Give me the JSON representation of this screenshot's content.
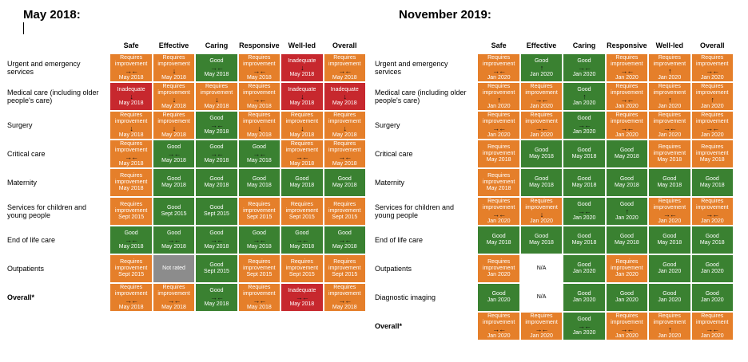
{
  "headings": {
    "left": "May 2018:",
    "right": "November 2019:"
  },
  "columns": [
    "Safe",
    "Effective",
    "Caring",
    "Responsive",
    "Well-led",
    "Overall"
  ],
  "colors": {
    "requires_improvement": "#e57f2a",
    "good": "#3a8131",
    "inadequate": "#c7282e",
    "not_rated": "#8c8c8c",
    "na": "#ffffff"
  },
  "may2018": {
    "rows": [
      {
        "label": "Urgent and emergency services",
        "cells": [
          {
            "rating": "Requires improvement",
            "arrow": "→←",
            "date": "May 2018"
          },
          {
            "rating": "Requires improvement",
            "arrow": "↓",
            "date": "May 2018"
          },
          {
            "rating": "Good",
            "arrow": "→←",
            "date": "May 2018"
          },
          {
            "rating": "Requires improvement",
            "arrow": "→←",
            "date": "May 2018"
          },
          {
            "rating": "Inadequate",
            "arrow": "↓",
            "date": "May 2018"
          },
          {
            "rating": "Requires improvement",
            "arrow": "→←",
            "date": "May 2018"
          }
        ]
      },
      {
        "label": "Medical care (including older people's care)",
        "cells": [
          {
            "rating": "Inadequate",
            "arrow": "↓",
            "date": "May 2018"
          },
          {
            "rating": "Requires improvement",
            "arrow": "↓",
            "date": "May 2018"
          },
          {
            "rating": "Requires improvement",
            "arrow": "↓",
            "date": "May 2018"
          },
          {
            "rating": "Requires improvement",
            "arrow": "→←",
            "date": "May 2018"
          },
          {
            "rating": "Inadequate",
            "arrow": "↓",
            "date": "May 2018"
          },
          {
            "rating": "Inadequate",
            "arrow": "↓",
            "date": "May 2018"
          }
        ]
      },
      {
        "label": "Surgery",
        "cells": [
          {
            "rating": "Requires improvement",
            "arrow": "↓",
            "date": "May 2018"
          },
          {
            "rating": "Requires improvement",
            "arrow": "↓",
            "date": "May 2018"
          },
          {
            "rating": "Good",
            "arrow": "→←",
            "date": "May 2018"
          },
          {
            "rating": "Requires improvement",
            "arrow": "↓",
            "date": "May 2018"
          },
          {
            "rating": "Requires improvement",
            "arrow": "↓",
            "date": "May 2018"
          },
          {
            "rating": "Requires improvement",
            "arrow": "↓",
            "date": "May 2018"
          }
        ]
      },
      {
        "label": "Critical care",
        "cells": [
          {
            "rating": "Requires improvement",
            "arrow": "→←",
            "date": "May 2018"
          },
          {
            "rating": "Good",
            "arrow": "→←",
            "date": "May 2018"
          },
          {
            "rating": "Good",
            "arrow": "→←",
            "date": "May 2018"
          },
          {
            "rating": "Good",
            "arrow": "→←",
            "date": "May 2018"
          },
          {
            "rating": "Requires improvement",
            "arrow": "→←",
            "date": "May 2018"
          },
          {
            "rating": "Requires improvement",
            "arrow": "→←",
            "date": "May 2018"
          }
        ]
      },
      {
        "label": "Maternity",
        "cells": [
          {
            "rating": "Requires improvement",
            "arrow": "",
            "date": "May 2018"
          },
          {
            "rating": "Good",
            "arrow": "",
            "date": "May 2018"
          },
          {
            "rating": "Good",
            "arrow": "",
            "date": "May 2018"
          },
          {
            "rating": "Good",
            "arrow": "",
            "date": "May 2018"
          },
          {
            "rating": "Good",
            "arrow": "",
            "date": "May 2018"
          },
          {
            "rating": "Good",
            "arrow": "",
            "date": "May 2018"
          }
        ]
      },
      {
        "label": "Services for children and young people",
        "cells": [
          {
            "rating": "Requires improvement",
            "arrow": "",
            "date": "Sept 2015"
          },
          {
            "rating": "Good",
            "arrow": "",
            "date": "Sept 2015"
          },
          {
            "rating": "Good",
            "arrow": "",
            "date": "Sept 2015"
          },
          {
            "rating": "Requires improvement",
            "arrow": "",
            "date": "Sept 2015"
          },
          {
            "rating": "Requires improvement",
            "arrow": "",
            "date": "Sept 2015"
          },
          {
            "rating": "Requires improvement",
            "arrow": "",
            "date": "Sept 2015"
          }
        ]
      },
      {
        "label": "End of life care",
        "cells": [
          {
            "rating": "Good",
            "arrow": "→←",
            "date": "May 2018"
          },
          {
            "rating": "Good",
            "arrow": "→←",
            "date": "May 2018"
          },
          {
            "rating": "Good",
            "arrow": "→←",
            "date": "May 2018"
          },
          {
            "rating": "Good",
            "arrow": "→←",
            "date": "May 2018"
          },
          {
            "rating": "Good",
            "arrow": "→←",
            "date": "May 2018"
          },
          {
            "rating": "Good",
            "arrow": "→←",
            "date": "May 2018"
          }
        ]
      },
      {
        "label": "Outpatients",
        "cells": [
          {
            "rating": "Requires improvement",
            "arrow": "",
            "date": "Sept 2015"
          },
          {
            "rating": "Not rated",
            "arrow": "",
            "date": ""
          },
          {
            "rating": "Good",
            "arrow": "",
            "date": "Sept 2015"
          },
          {
            "rating": "Requires improvement",
            "arrow": "",
            "date": "Sept 2015"
          },
          {
            "rating": "Requires improvement",
            "arrow": "",
            "date": "Sept 2015"
          },
          {
            "rating": "Requires improvement",
            "arrow": "",
            "date": "Sept 2015"
          }
        ]
      },
      {
        "label": "Overall*",
        "bold": true,
        "cells": [
          {
            "rating": "Requires improvement",
            "arrow": "→←",
            "date": "May 2018"
          },
          {
            "rating": "Requires improvement",
            "arrow": "→←",
            "date": "May 2018"
          },
          {
            "rating": "Good",
            "arrow": "→←",
            "date": "May 2018"
          },
          {
            "rating": "Requires improvement",
            "arrow": "→←",
            "date": "May 2018"
          },
          {
            "rating": "Inadequate",
            "arrow": "→←",
            "date": "May 2018"
          },
          {
            "rating": "Requires improvement",
            "arrow": "→←",
            "date": "May 2018"
          }
        ]
      }
    ]
  },
  "nov2019": {
    "rows": [
      {
        "label": "Urgent and emergency services",
        "cells": [
          {
            "rating": "Requires improvement",
            "arrow": "→←",
            "date": "Jan 2020"
          },
          {
            "rating": "Good",
            "arrow": "↑",
            "date": "Jan 2020"
          },
          {
            "rating": "Good",
            "arrow": "→←",
            "date": "Jan 2020"
          },
          {
            "rating": "Requires improvement",
            "arrow": "→←",
            "date": "Jan 2020"
          },
          {
            "rating": "Requires improvement",
            "arrow": "↑",
            "date": "Jan 2020"
          },
          {
            "rating": "Requires improvement",
            "arrow": "→←",
            "date": "Jan 2020"
          }
        ]
      },
      {
        "label": "Medical care (including older people's care)",
        "cells": [
          {
            "rating": "Requires improvement",
            "arrow": "↑",
            "date": "Jan 2020"
          },
          {
            "rating": "Requires improvement",
            "arrow": "→←",
            "date": "Jan 2020"
          },
          {
            "rating": "Good",
            "arrow": "↑",
            "date": "Jan 2020"
          },
          {
            "rating": "Requires improvement",
            "arrow": "→←",
            "date": "Jan 2020"
          },
          {
            "rating": "Requires improvement",
            "arrow": "↑",
            "date": "Jan 2020"
          },
          {
            "rating": "Requires improvement",
            "arrow": "↑",
            "date": "Jan 2020"
          }
        ]
      },
      {
        "label": "Surgery",
        "cells": [
          {
            "rating": "Requires improvement",
            "arrow": "→←",
            "date": "Jan 2020"
          },
          {
            "rating": "Requires improvement",
            "arrow": "→←",
            "date": "Jan 2020"
          },
          {
            "rating": "Good",
            "arrow": "→←",
            "date": "Jan 2020"
          },
          {
            "rating": "Requires improvement",
            "arrow": "→←",
            "date": "Jan 2020"
          },
          {
            "rating": "Requires improvement",
            "arrow": "→←",
            "date": "Jan 2020"
          },
          {
            "rating": "Requires improvement",
            "arrow": "→←",
            "date": "Jan 2020"
          }
        ]
      },
      {
        "label": "Critical care",
        "cells": [
          {
            "rating": "Requires improvement",
            "arrow": "",
            "date": "May 2018"
          },
          {
            "rating": "Good",
            "arrow": "",
            "date": "May 2018"
          },
          {
            "rating": "Good",
            "arrow": "",
            "date": "May 2018"
          },
          {
            "rating": "Good",
            "arrow": "",
            "date": "May 2018"
          },
          {
            "rating": "Requires improvement",
            "arrow": "",
            "date": "May 2018"
          },
          {
            "rating": "Requires improvement",
            "arrow": "",
            "date": "May 2018"
          }
        ]
      },
      {
        "label": "Maternity",
        "cells": [
          {
            "rating": "Requires improvement",
            "arrow": "",
            "date": "May 2018"
          },
          {
            "rating": "Good",
            "arrow": "",
            "date": "May 2018"
          },
          {
            "rating": "Good",
            "arrow": "",
            "date": "May 2018"
          },
          {
            "rating": "Good",
            "arrow": "",
            "date": "May 2018"
          },
          {
            "rating": "Good",
            "arrow": "",
            "date": "May 2018"
          },
          {
            "rating": "Good",
            "arrow": "",
            "date": "May 2018"
          }
        ]
      },
      {
        "label": "Services for children and young people",
        "cells": [
          {
            "rating": "Requires improvement",
            "arrow": "→←",
            "date": "Jan 2020"
          },
          {
            "rating": "Requires improvement",
            "arrow": "↓",
            "date": "Jan 2020"
          },
          {
            "rating": "Good",
            "arrow": "→←",
            "date": "Jan 2020"
          },
          {
            "rating": "Good",
            "arrow": "↑",
            "date": "Jan 2020"
          },
          {
            "rating": "Requires improvement",
            "arrow": "→←",
            "date": "Jan 2020"
          },
          {
            "rating": "Requires improvement",
            "arrow": "→←",
            "date": "Jan 2020"
          }
        ]
      },
      {
        "label": "End of life care",
        "cells": [
          {
            "rating": "Good",
            "arrow": "",
            "date": "May 2018"
          },
          {
            "rating": "Good",
            "arrow": "",
            "date": "May 2018"
          },
          {
            "rating": "Good",
            "arrow": "",
            "date": "May 2018"
          },
          {
            "rating": "Good",
            "arrow": "",
            "date": "May 2018"
          },
          {
            "rating": "Good",
            "arrow": "",
            "date": "May 2018"
          },
          {
            "rating": "Good",
            "arrow": "",
            "date": "May 2018"
          }
        ]
      },
      {
        "label": "Outpatients",
        "cells": [
          {
            "rating": "Requires improvement",
            "arrow": "",
            "date": "Jan 2020"
          },
          {
            "rating": "N/A",
            "arrow": "",
            "date": ""
          },
          {
            "rating": "Good",
            "arrow": "",
            "date": "Jan 2020"
          },
          {
            "rating": "Requires improvement",
            "arrow": "",
            "date": "Jan 2020"
          },
          {
            "rating": "Good",
            "arrow": "",
            "date": "Jan 2020"
          },
          {
            "rating": "Good",
            "arrow": "",
            "date": "Jan 2020"
          }
        ]
      },
      {
        "label": "Diagnostic imaging",
        "cells": [
          {
            "rating": "Good",
            "arrow": "",
            "date": "Jan 2020"
          },
          {
            "rating": "N/A",
            "arrow": "",
            "date": ""
          },
          {
            "rating": "Good",
            "arrow": "",
            "date": "Jan 2020"
          },
          {
            "rating": "Good",
            "arrow": "",
            "date": "Jan 2020"
          },
          {
            "rating": "Good",
            "arrow": "",
            "date": "Jan 2020"
          },
          {
            "rating": "Good",
            "arrow": "",
            "date": "Jan 2020"
          }
        ]
      },
      {
        "label": "Overall*",
        "bold": true,
        "cells": [
          {
            "rating": "Requires improvement",
            "arrow": "→←",
            "date": "Jan 2020"
          },
          {
            "rating": "Requires improvement",
            "arrow": "→←",
            "date": "Jan 2020"
          },
          {
            "rating": "Good",
            "arrow": "→←",
            "date": "Jan 2020"
          },
          {
            "rating": "Requires improvement",
            "arrow": "→←",
            "date": "Jan 2020"
          },
          {
            "rating": "Requires improvement",
            "arrow": "↑",
            "date": "Jan 2020"
          },
          {
            "rating": "Requires improvement",
            "arrow": "→←",
            "date": "Jan 2020"
          }
        ]
      }
    ]
  }
}
